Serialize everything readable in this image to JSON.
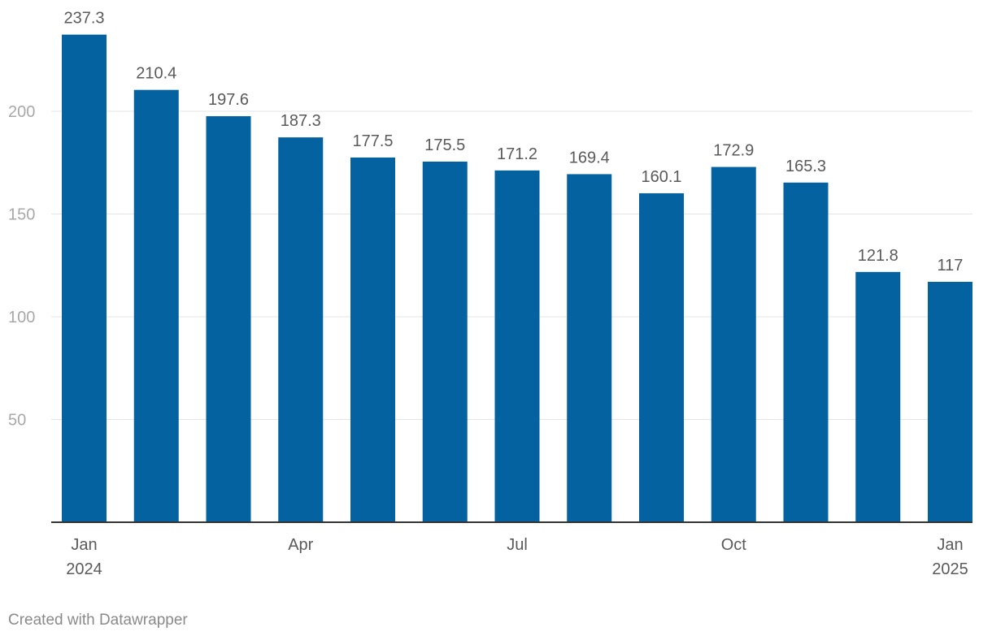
{
  "chart_data": {
    "type": "bar",
    "categories": [
      "Jan 2024",
      "Feb 2024",
      "Mar 2024",
      "Apr 2024",
      "May 2024",
      "Jun 2024",
      "Jul 2024",
      "Aug 2024",
      "Sep 2024",
      "Oct 2024",
      "Nov 2024",
      "Dec 2024",
      "Jan 2025"
    ],
    "values": [
      237.3,
      210.4,
      197.6,
      187.3,
      177.5,
      175.5,
      171.2,
      169.4,
      160.1,
      172.9,
      165.3,
      121.8,
      117
    ],
    "data_labels": [
      "237.3",
      "210.4",
      "197.6",
      "187.3",
      "177.5",
      "175.5",
      "171.2",
      "169.4",
      "160.1",
      "172.9",
      "165.3",
      "121.8",
      "117"
    ],
    "y_ticks": [
      50,
      100,
      150,
      200
    ],
    "ylim": [
      0,
      240
    ],
    "x_tick_labels": [
      {
        "index": 0,
        "lines": [
          "Jan",
          "2024"
        ]
      },
      {
        "index": 3,
        "lines": [
          "Apr"
        ]
      },
      {
        "index": 6,
        "lines": [
          "Jul"
        ]
      },
      {
        "index": 9,
        "lines": [
          "Oct"
        ]
      },
      {
        "index": 12,
        "lines": [
          "Jan",
          "2025"
        ]
      }
    ],
    "title": "",
    "xlabel": "",
    "ylabel": "",
    "grid": true,
    "bar_color": "#0562a0",
    "gridline_color": "#e4e4e4",
    "axis_color": "#333333"
  },
  "footer": {
    "credit": "Created with Datawrapper"
  }
}
